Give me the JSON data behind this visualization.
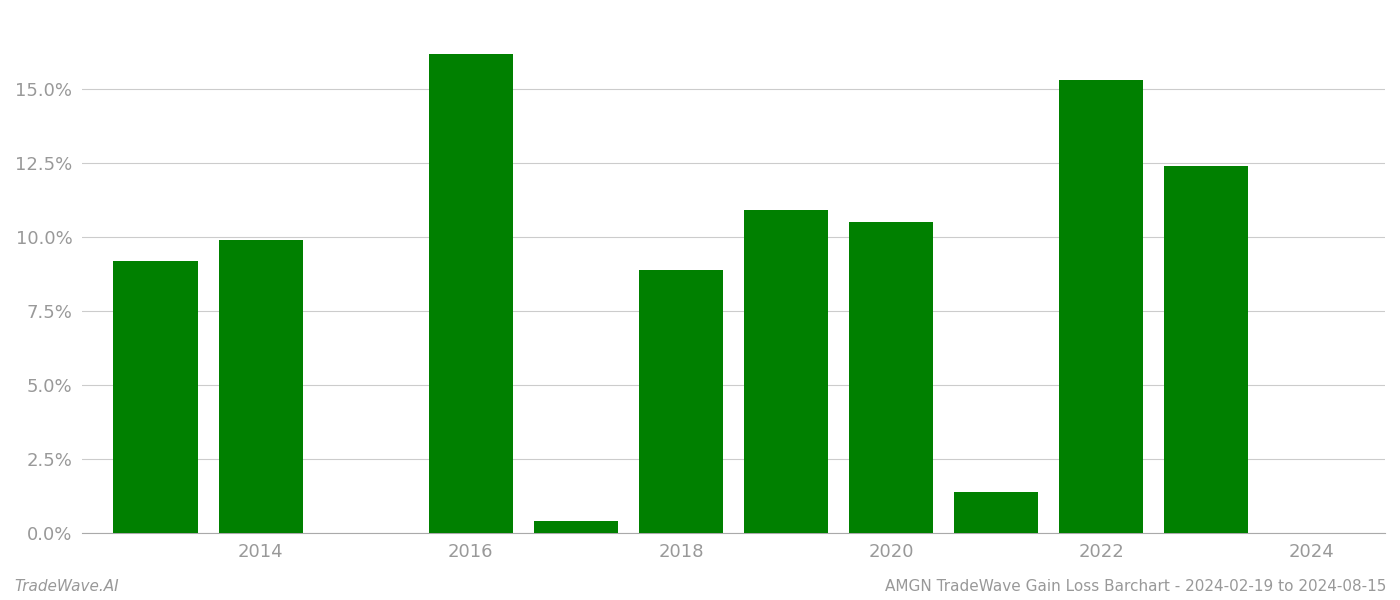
{
  "years": [
    2013,
    2014,
    2016,
    2017,
    2018,
    2019,
    2020,
    2021,
    2022,
    2023
  ],
  "values": [
    0.092,
    0.099,
    0.162,
    0.004,
    0.089,
    0.109,
    0.105,
    0.014,
    0.153,
    0.124
  ],
  "bar_color": "#008000",
  "background_color": "#ffffff",
  "grid_color": "#cccccc",
  "tick_label_color": "#999999",
  "bottom_left_text": "TradeWave.AI",
  "bottom_right_text": "AMGN TradeWave Gain Loss Barchart - 2024-02-19 to 2024-08-15",
  "xlim": [
    2012.3,
    2024.7
  ],
  "ylim": [
    0.0,
    0.175
  ],
  "yticks": [
    0.0,
    0.025,
    0.05,
    0.075,
    0.1,
    0.125,
    0.15
  ],
  "xticks": [
    2014,
    2016,
    2018,
    2020,
    2022,
    2024
  ],
  "bar_width": 0.8,
  "figsize": [
    14.0,
    6.0
  ],
  "dpi": 100
}
